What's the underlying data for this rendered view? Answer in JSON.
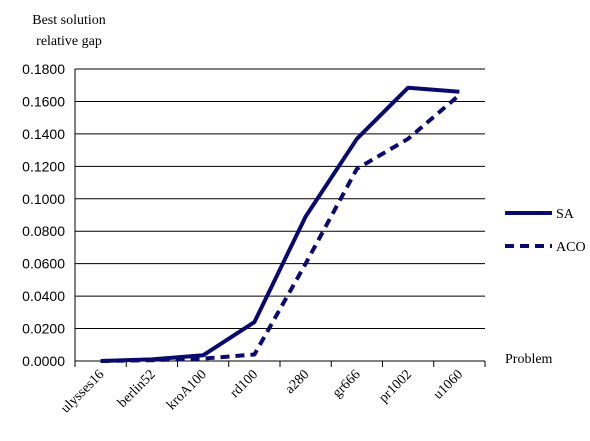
{
  "chart_data": {
    "type": "line",
    "ylabel": "Best solution relative gap",
    "ylabel_lines": [
      "Best solution",
      "relative gap"
    ],
    "xlabel": "Problem",
    "categories": [
      "ulysses16",
      "berlin52",
      "kroA100",
      "rd100",
      "a280",
      "gr666",
      "pr1002",
      "u1060"
    ],
    "ylim": [
      0,
      0.18
    ],
    "yticks": [
      "0.0000",
      "0.0200",
      "0.0400",
      "0.0600",
      "0.0800",
      "0.1000",
      "0.1200",
      "0.1400",
      "0.1600",
      "0.1800"
    ],
    "grid": true,
    "legend_position": "right",
    "series": [
      {
        "name": "SA",
        "style": "solid",
        "color": "#0a0a6e",
        "values": [
          0.0,
          0.001,
          0.0035,
          0.024,
          0.089,
          0.137,
          0.1685,
          0.166
        ]
      },
      {
        "name": "ACO",
        "style": "dashed",
        "color": "#0a0a6e",
        "values": [
          0.0,
          0.0005,
          0.0015,
          0.004,
          0.06,
          0.1185,
          0.137,
          0.164
        ]
      }
    ]
  }
}
